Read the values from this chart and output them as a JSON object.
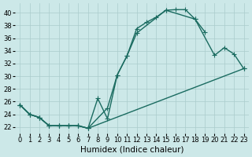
{
  "bg_color": "#cce8e8",
  "grid_color": "#aacccc",
  "line_color": "#1a6b60",
  "line_width": 1.0,
  "markersize": 4,
  "xlabel": "Humidex (Indice chaleur)",
  "xlabel_fontsize": 7.5,
  "tick_fontsize": 6,
  "xlim": [
    -0.5,
    23.5
  ],
  "ylim": [
    21.0,
    41.5
  ],
  "yticks": [
    22,
    24,
    26,
    28,
    30,
    32,
    34,
    36,
    38,
    40
  ],
  "xticks": [
    0,
    1,
    2,
    3,
    4,
    5,
    6,
    7,
    8,
    9,
    10,
    11,
    12,
    13,
    14,
    15,
    16,
    17,
    18,
    19,
    20,
    21,
    22,
    23
  ],
  "line1_x": [
    0,
    1,
    2,
    3,
    4,
    5,
    6,
    7,
    8,
    9,
    10,
    11,
    12,
    13,
    14,
    15,
    16,
    17,
    18,
    19
  ],
  "line1_y": [
    25.5,
    24.0,
    23.5,
    22.2,
    22.2,
    22.2,
    22.2,
    21.8,
    26.5,
    23.3,
    30.2,
    33.2,
    37.5,
    38.5,
    39.3,
    40.4,
    40.5,
    40.5,
    39.0,
    37.0
  ],
  "line2_x": [
    0,
    1,
    2,
    3,
    4,
    5,
    6,
    7,
    9,
    10,
    11,
    12,
    15,
    18,
    20,
    21,
    22,
    23
  ],
  "line2_y": [
    25.5,
    24.0,
    23.5,
    22.2,
    22.2,
    22.2,
    22.2,
    21.8,
    25.0,
    30.2,
    33.2,
    36.8,
    40.4,
    39.0,
    33.3,
    34.5,
    33.5,
    31.2
  ],
  "line3_x": [
    0,
    1,
    2,
    3,
    4,
    5,
    6,
    7,
    23
  ],
  "line3_y": [
    25.5,
    24.0,
    23.5,
    22.2,
    22.2,
    22.2,
    22.2,
    21.8,
    31.2
  ]
}
